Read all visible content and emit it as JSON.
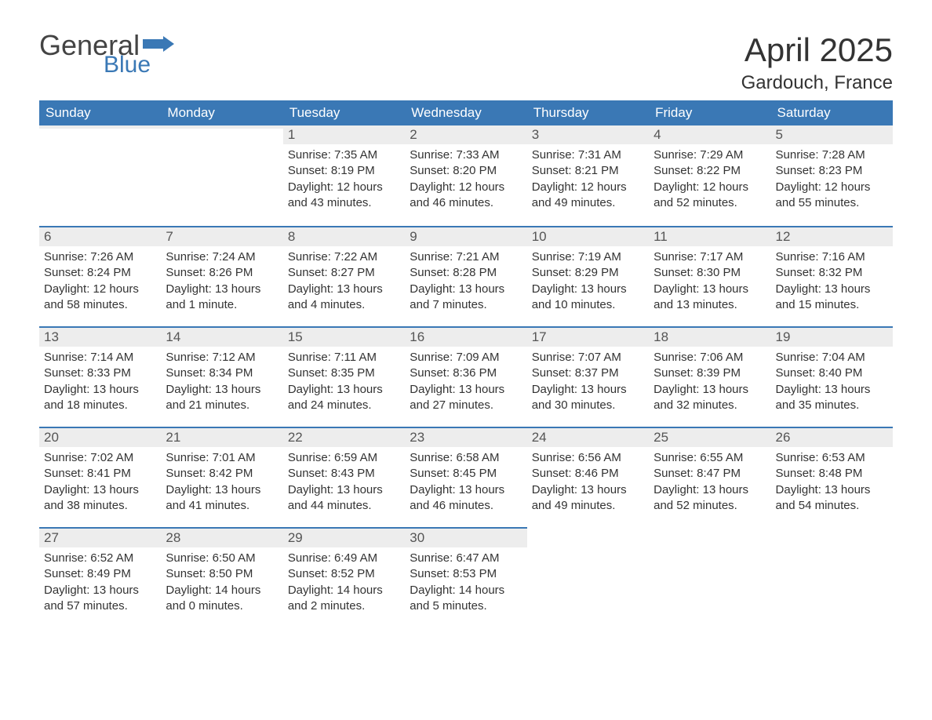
{
  "brand": {
    "general": "General",
    "blue": "Blue"
  },
  "title": "April 2025",
  "location": "Gardouch, France",
  "colors": {
    "header_bg": "#3a78b5",
    "header_text": "#ffffff",
    "daynum_bg": "#ededed",
    "daynum_border": "#3a78b5",
    "body_text": "#333333",
    "logo_gray": "#444444",
    "logo_blue": "#3a78b5"
  },
  "weekdays": [
    "Sunday",
    "Monday",
    "Tuesday",
    "Wednesday",
    "Thursday",
    "Friday",
    "Saturday"
  ],
  "grid": [
    [
      {
        "n": "",
        "sr": "",
        "ss": "",
        "dl": ""
      },
      {
        "n": "",
        "sr": "",
        "ss": "",
        "dl": ""
      },
      {
        "n": "1",
        "sr": "Sunrise: 7:35 AM",
        "ss": "Sunset: 8:19 PM",
        "dl": "Daylight: 12 hours and 43 minutes."
      },
      {
        "n": "2",
        "sr": "Sunrise: 7:33 AM",
        "ss": "Sunset: 8:20 PM",
        "dl": "Daylight: 12 hours and 46 minutes."
      },
      {
        "n": "3",
        "sr": "Sunrise: 7:31 AM",
        "ss": "Sunset: 8:21 PM",
        "dl": "Daylight: 12 hours and 49 minutes."
      },
      {
        "n": "4",
        "sr": "Sunrise: 7:29 AM",
        "ss": "Sunset: 8:22 PM",
        "dl": "Daylight: 12 hours and 52 minutes."
      },
      {
        "n": "5",
        "sr": "Sunrise: 7:28 AM",
        "ss": "Sunset: 8:23 PM",
        "dl": "Daylight: 12 hours and 55 minutes."
      }
    ],
    [
      {
        "n": "6",
        "sr": "Sunrise: 7:26 AM",
        "ss": "Sunset: 8:24 PM",
        "dl": "Daylight: 12 hours and 58 minutes."
      },
      {
        "n": "7",
        "sr": "Sunrise: 7:24 AM",
        "ss": "Sunset: 8:26 PM",
        "dl": "Daylight: 13 hours and 1 minute."
      },
      {
        "n": "8",
        "sr": "Sunrise: 7:22 AM",
        "ss": "Sunset: 8:27 PM",
        "dl": "Daylight: 13 hours and 4 minutes."
      },
      {
        "n": "9",
        "sr": "Sunrise: 7:21 AM",
        "ss": "Sunset: 8:28 PM",
        "dl": "Daylight: 13 hours and 7 minutes."
      },
      {
        "n": "10",
        "sr": "Sunrise: 7:19 AM",
        "ss": "Sunset: 8:29 PM",
        "dl": "Daylight: 13 hours and 10 minutes."
      },
      {
        "n": "11",
        "sr": "Sunrise: 7:17 AM",
        "ss": "Sunset: 8:30 PM",
        "dl": "Daylight: 13 hours and 13 minutes."
      },
      {
        "n": "12",
        "sr": "Sunrise: 7:16 AM",
        "ss": "Sunset: 8:32 PM",
        "dl": "Daylight: 13 hours and 15 minutes."
      }
    ],
    [
      {
        "n": "13",
        "sr": "Sunrise: 7:14 AM",
        "ss": "Sunset: 8:33 PM",
        "dl": "Daylight: 13 hours and 18 minutes."
      },
      {
        "n": "14",
        "sr": "Sunrise: 7:12 AM",
        "ss": "Sunset: 8:34 PM",
        "dl": "Daylight: 13 hours and 21 minutes."
      },
      {
        "n": "15",
        "sr": "Sunrise: 7:11 AM",
        "ss": "Sunset: 8:35 PM",
        "dl": "Daylight: 13 hours and 24 minutes."
      },
      {
        "n": "16",
        "sr": "Sunrise: 7:09 AM",
        "ss": "Sunset: 8:36 PM",
        "dl": "Daylight: 13 hours and 27 minutes."
      },
      {
        "n": "17",
        "sr": "Sunrise: 7:07 AM",
        "ss": "Sunset: 8:37 PM",
        "dl": "Daylight: 13 hours and 30 minutes."
      },
      {
        "n": "18",
        "sr": "Sunrise: 7:06 AM",
        "ss": "Sunset: 8:39 PM",
        "dl": "Daylight: 13 hours and 32 minutes."
      },
      {
        "n": "19",
        "sr": "Sunrise: 7:04 AM",
        "ss": "Sunset: 8:40 PM",
        "dl": "Daylight: 13 hours and 35 minutes."
      }
    ],
    [
      {
        "n": "20",
        "sr": "Sunrise: 7:02 AM",
        "ss": "Sunset: 8:41 PM",
        "dl": "Daylight: 13 hours and 38 minutes."
      },
      {
        "n": "21",
        "sr": "Sunrise: 7:01 AM",
        "ss": "Sunset: 8:42 PM",
        "dl": "Daylight: 13 hours and 41 minutes."
      },
      {
        "n": "22",
        "sr": "Sunrise: 6:59 AM",
        "ss": "Sunset: 8:43 PM",
        "dl": "Daylight: 13 hours and 44 minutes."
      },
      {
        "n": "23",
        "sr": "Sunrise: 6:58 AM",
        "ss": "Sunset: 8:45 PM",
        "dl": "Daylight: 13 hours and 46 minutes."
      },
      {
        "n": "24",
        "sr": "Sunrise: 6:56 AM",
        "ss": "Sunset: 8:46 PM",
        "dl": "Daylight: 13 hours and 49 minutes."
      },
      {
        "n": "25",
        "sr": "Sunrise: 6:55 AM",
        "ss": "Sunset: 8:47 PM",
        "dl": "Daylight: 13 hours and 52 minutes."
      },
      {
        "n": "26",
        "sr": "Sunrise: 6:53 AM",
        "ss": "Sunset: 8:48 PM",
        "dl": "Daylight: 13 hours and 54 minutes."
      }
    ],
    [
      {
        "n": "27",
        "sr": "Sunrise: 6:52 AM",
        "ss": "Sunset: 8:49 PM",
        "dl": "Daylight: 13 hours and 57 minutes."
      },
      {
        "n": "28",
        "sr": "Sunrise: 6:50 AM",
        "ss": "Sunset: 8:50 PM",
        "dl": "Daylight: 14 hours and 0 minutes."
      },
      {
        "n": "29",
        "sr": "Sunrise: 6:49 AM",
        "ss": "Sunset: 8:52 PM",
        "dl": "Daylight: 14 hours and 2 minutes."
      },
      {
        "n": "30",
        "sr": "Sunrise: 6:47 AM",
        "ss": "Sunset: 8:53 PM",
        "dl": "Daylight: 14 hours and 5 minutes."
      },
      {
        "n": "",
        "sr": "",
        "ss": "",
        "dl": ""
      },
      {
        "n": "",
        "sr": "",
        "ss": "",
        "dl": ""
      },
      {
        "n": "",
        "sr": "",
        "ss": "",
        "dl": ""
      }
    ]
  ]
}
